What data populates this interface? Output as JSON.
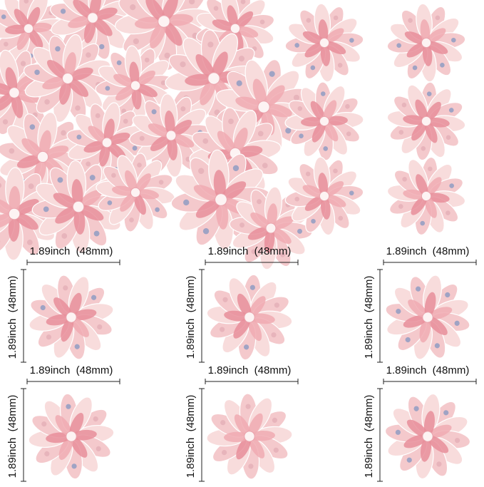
{
  "size_labels": [
    {
      "width": "1.89inch  (48mm)",
      "height": "1.89inch  (48mm)"
    },
    {
      "width": "1.89inch  (48mm)",
      "height": "1.89inch  (48mm)"
    },
    {
      "width": "1.89inch  (48mm)",
      "height": "1.89inch  (48mm)"
    },
    {
      "width": "1.89inch  (48mm)",
      "height": "1.89inch  (48mm)"
    },
    {
      "width": "1.89inch  (48mm)",
      "height": "1.89inch  (48mm)"
    },
    {
      "width": "1.89inch  (48mm)",
      "height": "1.89inch  (48mm)"
    }
  ]
}
